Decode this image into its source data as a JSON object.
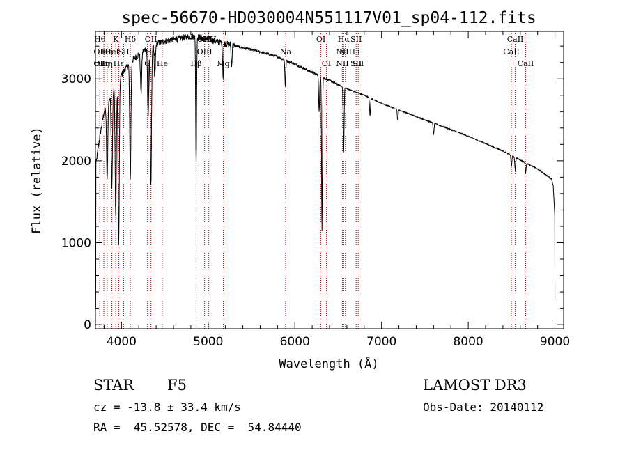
{
  "chart_data": {
    "type": "line",
    "title": "spec-56670-HD030004N551117V01_sp04-112.fits",
    "xlabel": "Wavelength (Å)",
    "ylabel": "Flux (relative)",
    "xlim": [
      3700,
      9100
    ],
    "ylim": [
      -50,
      3580
    ],
    "xticks": [
      4000,
      5000,
      6000,
      7000,
      8000,
      9000
    ],
    "yticks": [
      0,
      1000,
      2000,
      3000
    ],
    "grid": false,
    "series": [
      {
        "name": "spectrum",
        "continuum": [
          [
            3700,
            1900
          ],
          [
            3750,
            2300
          ],
          [
            3800,
            2600
          ],
          [
            3900,
            2850
          ],
          [
            4000,
            3050
          ],
          [
            4100,
            3200
          ],
          [
            4200,
            3300
          ],
          [
            4300,
            3380
          ],
          [
            4400,
            3430
          ],
          [
            4500,
            3460
          ],
          [
            4600,
            3480
          ],
          [
            4700,
            3500
          ],
          [
            4800,
            3520
          ],
          [
            4900,
            3510
          ],
          [
            5000,
            3480
          ],
          [
            5200,
            3430
          ],
          [
            5400,
            3380
          ],
          [
            5600,
            3330
          ],
          [
            5800,
            3270
          ],
          [
            6000,
            3180
          ],
          [
            6200,
            3080
          ],
          [
            6400,
            2980
          ],
          [
            6600,
            2880
          ],
          [
            6800,
            2800
          ],
          [
            7000,
            2700
          ],
          [
            7200,
            2620
          ],
          [
            7400,
            2540
          ],
          [
            7600,
            2460
          ],
          [
            7800,
            2380
          ],
          [
            8000,
            2300
          ],
          [
            8200,
            2210
          ],
          [
            8400,
            2120
          ],
          [
            8600,
            2010
          ],
          [
            8800,
            1900
          ],
          [
            8960,
            1780
          ],
          [
            8980,
            1700
          ],
          [
            9000,
            1300
          ]
        ],
        "absorption_lines": [
          [
            3835,
            0.35
          ],
          [
            3889,
            0.4
          ],
          [
            3934,
            0.55
          ],
          [
            3968,
            0.68
          ],
          [
            4102,
            0.45
          ],
          [
            4226,
            0.15
          ],
          [
            4308,
            0.25
          ],
          [
            4340,
            0.5
          ],
          [
            4384,
            0.12
          ],
          [
            4861,
            0.45
          ],
          [
            5172,
            0.12
          ],
          [
            5270,
            0.08
          ],
          [
            5890,
            0.1
          ],
          [
            6280,
            0.15
          ],
          [
            6313,
            0.62
          ],
          [
            6563,
            0.28
          ],
          [
            6867,
            0.08
          ],
          [
            7186,
            0.05
          ],
          [
            7600,
            0.06
          ],
          [
            8498,
            0.07
          ],
          [
            8542,
            0.08
          ],
          [
            8662,
            0.06
          ]
        ]
      }
    ],
    "spectral_lines": [
      {
        "x": 3750,
        "rows": [
          {
            "text": "Hθ",
            "level": 0
          },
          {
            "text": "OII",
            "level": 1
          },
          {
            "text": "OII",
            "level": 2
          }
        ]
      },
      {
        "x": 3797,
        "rows": [
          {
            "text": "Hη",
            "level": 2
          }
        ]
      },
      {
        "x": 3835,
        "rows": [
          {
            "text": "He",
            "level": 1
          },
          {
            "text": "Hη",
            "level": 2
          }
        ]
      },
      {
        "x": 3889,
        "rows": [
          {
            "text": "HeI",
            "level": 1
          }
        ]
      },
      {
        "x": 3934,
        "rows": [
          {
            "text": "K",
            "level": 0
          }
        ]
      },
      {
        "x": 3968,
        "rows": [
          {
            "text": "Hε",
            "level": 2
          }
        ]
      },
      {
        "x": 4026,
        "rows": [
          {
            "text": "SII",
            "level": 1
          }
        ]
      },
      {
        "x": 4102,
        "rows": [
          {
            "text": "Hδ",
            "level": 0
          }
        ]
      },
      {
        "x": 4300,
        "rows": [
          {
            "text": "G",
            "level": 2
          }
        ]
      },
      {
        "x": 4340,
        "rows": [
          {
            "text": "OII",
            "level": 0
          },
          {
            "text": "Hγ",
            "level": 1
          }
        ]
      },
      {
        "x": 4471,
        "rows": [
          {
            "text": "He",
            "level": 2
          }
        ]
      },
      {
        "x": 4861,
        "rows": [
          {
            "text": "Hβ",
            "level": 2
          }
        ]
      },
      {
        "x": 4959,
        "rows": [
          {
            "text": "OIII",
            "level": 0
          },
          {
            "text": "OIII",
            "level": 1
          }
        ]
      },
      {
        "x": 5007,
        "rows": [
          {
            "text": "OIII",
            "level": 0
          }
        ]
      },
      {
        "x": 5175,
        "rows": [
          {
            "text": "Mg",
            "level": 2
          }
        ]
      },
      {
        "x": 5893,
        "rows": [
          {
            "text": "Na",
            "level": 1
          }
        ]
      },
      {
        "x": 6300,
        "rows": [
          {
            "text": "OI",
            "level": 0
          }
        ]
      },
      {
        "x": 6364,
        "rows": [
          {
            "text": "OI",
            "level": 2
          }
        ]
      },
      {
        "x": 6548,
        "rows": [
          {
            "text": "NII",
            "level": 1
          },
          {
            "text": "NII",
            "level": 2
          }
        ]
      },
      {
        "x": 6563,
        "rows": [
          {
            "text": "Hα",
            "level": 0
          }
        ]
      },
      {
        "x": 6583,
        "rows": [
          {
            "text": "NII",
            "level": 1
          }
        ]
      },
      {
        "x": 6707,
        "rows": [
          {
            "text": "SII",
            "level": 0
          },
          {
            "text": "Li",
            "level": 1
          },
          {
            "text": "SII",
            "level": 2
          }
        ]
      },
      {
        "x": 6731,
        "rows": [
          {
            "text": "SII",
            "level": 2
          }
        ]
      },
      {
        "x": 8498,
        "rows": [
          {
            "text": "CaII",
            "level": 1
          }
        ]
      },
      {
        "x": 8542,
        "rows": [
          {
            "text": "CaII",
            "level": 0
          }
        ]
      },
      {
        "x": 8662,
        "rows": [
          {
            "text": "CaII",
            "level": 2
          }
        ]
      }
    ]
  },
  "info": {
    "object_type": "STAR",
    "subclass": "F5",
    "cz": "cz = -13.8 ± 33.4 km/s",
    "radec": "RA =  45.52578, DEC =  54.84440",
    "survey": "LAMOST DR3",
    "obs_date": "Obs-Date: 20140112"
  },
  "colors": {
    "axis": "#000000",
    "spectrum": "#000000",
    "line_marker": "#cc0000"
  }
}
